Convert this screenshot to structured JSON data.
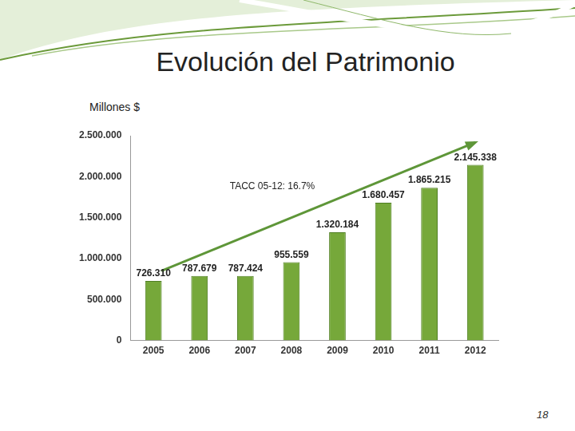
{
  "chart_data": {
    "type": "bar",
    "title": "Evolución del Patrimonio",
    "y_label": "Millones $",
    "annotation": "TACC 05-12: 16.7%",
    "categories": [
      "2005",
      "2006",
      "2007",
      "2008",
      "2009",
      "2010",
      "2011",
      "2012"
    ],
    "values": [
      726310,
      787679,
      787424,
      955559,
      1320184,
      1680457,
      1865215,
      2145338
    ],
    "value_labels": [
      "726.310",
      "787.679",
      "787.424",
      "955.559",
      "1.320.184",
      "1.680.457",
      "1.865.215",
      "2.145.338"
    ],
    "color": "#76a83a",
    "ylim": [
      0,
      2500000
    ],
    "yticks": [
      {
        "value": 0,
        "label": "0"
      },
      {
        "value": 500000,
        "label": "500.000"
      },
      {
        "value": 1000000,
        "label": "1.000.000"
      },
      {
        "value": 1500000,
        "label": "1.500.000"
      },
      {
        "value": 2000000,
        "label": "2.000.000"
      },
      {
        "value": 2500000,
        "label": "2.500.000"
      }
    ],
    "grid": false,
    "data_labels": true
  },
  "page_number": "18"
}
